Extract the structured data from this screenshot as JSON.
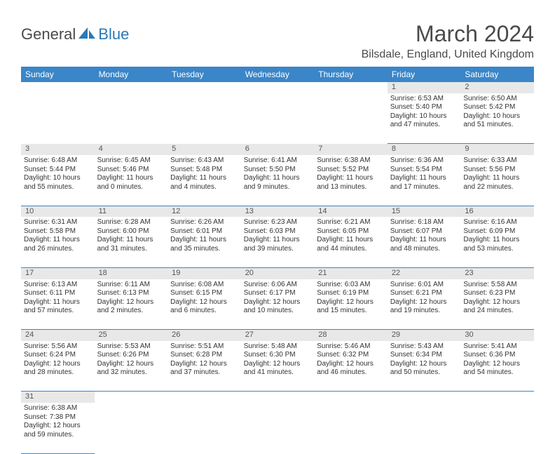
{
  "brand": {
    "part1": "General",
    "part2": "Blue"
  },
  "title": "March 2024",
  "location": "Bilsdale, England, United Kingdom",
  "colors": {
    "header_bg": "#3a86c8",
    "header_text": "#ffffff",
    "daynum_bg": "#e8e8e8",
    "border": "#3a86c8",
    "text": "#333333",
    "brand_gray": "#4a4a4a",
    "brand_blue": "#2a7ab8"
  },
  "weekdays": [
    "Sunday",
    "Monday",
    "Tuesday",
    "Wednesday",
    "Thursday",
    "Friday",
    "Saturday"
  ],
  "weeks": [
    [
      null,
      null,
      null,
      null,
      null,
      {
        "n": "1",
        "sunrise": "Sunrise: 6:53 AM",
        "sunset": "Sunset: 5:40 PM",
        "day1": "Daylight: 10 hours",
        "day2": "and 47 minutes."
      },
      {
        "n": "2",
        "sunrise": "Sunrise: 6:50 AM",
        "sunset": "Sunset: 5:42 PM",
        "day1": "Daylight: 10 hours",
        "day2": "and 51 minutes."
      }
    ],
    [
      {
        "n": "3",
        "sunrise": "Sunrise: 6:48 AM",
        "sunset": "Sunset: 5:44 PM",
        "day1": "Daylight: 10 hours",
        "day2": "and 55 minutes."
      },
      {
        "n": "4",
        "sunrise": "Sunrise: 6:45 AM",
        "sunset": "Sunset: 5:46 PM",
        "day1": "Daylight: 11 hours",
        "day2": "and 0 minutes."
      },
      {
        "n": "5",
        "sunrise": "Sunrise: 6:43 AM",
        "sunset": "Sunset: 5:48 PM",
        "day1": "Daylight: 11 hours",
        "day2": "and 4 minutes."
      },
      {
        "n": "6",
        "sunrise": "Sunrise: 6:41 AM",
        "sunset": "Sunset: 5:50 PM",
        "day1": "Daylight: 11 hours",
        "day2": "and 9 minutes."
      },
      {
        "n": "7",
        "sunrise": "Sunrise: 6:38 AM",
        "sunset": "Sunset: 5:52 PM",
        "day1": "Daylight: 11 hours",
        "day2": "and 13 minutes."
      },
      {
        "n": "8",
        "sunrise": "Sunrise: 6:36 AM",
        "sunset": "Sunset: 5:54 PM",
        "day1": "Daylight: 11 hours",
        "day2": "and 17 minutes."
      },
      {
        "n": "9",
        "sunrise": "Sunrise: 6:33 AM",
        "sunset": "Sunset: 5:56 PM",
        "day1": "Daylight: 11 hours",
        "day2": "and 22 minutes."
      }
    ],
    [
      {
        "n": "10",
        "sunrise": "Sunrise: 6:31 AM",
        "sunset": "Sunset: 5:58 PM",
        "day1": "Daylight: 11 hours",
        "day2": "and 26 minutes."
      },
      {
        "n": "11",
        "sunrise": "Sunrise: 6:28 AM",
        "sunset": "Sunset: 6:00 PM",
        "day1": "Daylight: 11 hours",
        "day2": "and 31 minutes."
      },
      {
        "n": "12",
        "sunrise": "Sunrise: 6:26 AM",
        "sunset": "Sunset: 6:01 PM",
        "day1": "Daylight: 11 hours",
        "day2": "and 35 minutes."
      },
      {
        "n": "13",
        "sunrise": "Sunrise: 6:23 AM",
        "sunset": "Sunset: 6:03 PM",
        "day1": "Daylight: 11 hours",
        "day2": "and 39 minutes."
      },
      {
        "n": "14",
        "sunrise": "Sunrise: 6:21 AM",
        "sunset": "Sunset: 6:05 PM",
        "day1": "Daylight: 11 hours",
        "day2": "and 44 minutes."
      },
      {
        "n": "15",
        "sunrise": "Sunrise: 6:18 AM",
        "sunset": "Sunset: 6:07 PM",
        "day1": "Daylight: 11 hours",
        "day2": "and 48 minutes."
      },
      {
        "n": "16",
        "sunrise": "Sunrise: 6:16 AM",
        "sunset": "Sunset: 6:09 PM",
        "day1": "Daylight: 11 hours",
        "day2": "and 53 minutes."
      }
    ],
    [
      {
        "n": "17",
        "sunrise": "Sunrise: 6:13 AM",
        "sunset": "Sunset: 6:11 PM",
        "day1": "Daylight: 11 hours",
        "day2": "and 57 minutes."
      },
      {
        "n": "18",
        "sunrise": "Sunrise: 6:11 AM",
        "sunset": "Sunset: 6:13 PM",
        "day1": "Daylight: 12 hours",
        "day2": "and 2 minutes."
      },
      {
        "n": "19",
        "sunrise": "Sunrise: 6:08 AM",
        "sunset": "Sunset: 6:15 PM",
        "day1": "Daylight: 12 hours",
        "day2": "and 6 minutes."
      },
      {
        "n": "20",
        "sunrise": "Sunrise: 6:06 AM",
        "sunset": "Sunset: 6:17 PM",
        "day1": "Daylight: 12 hours",
        "day2": "and 10 minutes."
      },
      {
        "n": "21",
        "sunrise": "Sunrise: 6:03 AM",
        "sunset": "Sunset: 6:19 PM",
        "day1": "Daylight: 12 hours",
        "day2": "and 15 minutes."
      },
      {
        "n": "22",
        "sunrise": "Sunrise: 6:01 AM",
        "sunset": "Sunset: 6:21 PM",
        "day1": "Daylight: 12 hours",
        "day2": "and 19 minutes."
      },
      {
        "n": "23",
        "sunrise": "Sunrise: 5:58 AM",
        "sunset": "Sunset: 6:23 PM",
        "day1": "Daylight: 12 hours",
        "day2": "and 24 minutes."
      }
    ],
    [
      {
        "n": "24",
        "sunrise": "Sunrise: 5:56 AM",
        "sunset": "Sunset: 6:24 PM",
        "day1": "Daylight: 12 hours",
        "day2": "and 28 minutes."
      },
      {
        "n": "25",
        "sunrise": "Sunrise: 5:53 AM",
        "sunset": "Sunset: 6:26 PM",
        "day1": "Daylight: 12 hours",
        "day2": "and 32 minutes."
      },
      {
        "n": "26",
        "sunrise": "Sunrise: 5:51 AM",
        "sunset": "Sunset: 6:28 PM",
        "day1": "Daylight: 12 hours",
        "day2": "and 37 minutes."
      },
      {
        "n": "27",
        "sunrise": "Sunrise: 5:48 AM",
        "sunset": "Sunset: 6:30 PM",
        "day1": "Daylight: 12 hours",
        "day2": "and 41 minutes."
      },
      {
        "n": "28",
        "sunrise": "Sunrise: 5:46 AM",
        "sunset": "Sunset: 6:32 PM",
        "day1": "Daylight: 12 hours",
        "day2": "and 46 minutes."
      },
      {
        "n": "29",
        "sunrise": "Sunrise: 5:43 AM",
        "sunset": "Sunset: 6:34 PM",
        "day1": "Daylight: 12 hours",
        "day2": "and 50 minutes."
      },
      {
        "n": "30",
        "sunrise": "Sunrise: 5:41 AM",
        "sunset": "Sunset: 6:36 PM",
        "day1": "Daylight: 12 hours",
        "day2": "and 54 minutes."
      }
    ],
    [
      {
        "n": "31",
        "sunrise": "Sunrise: 6:38 AM",
        "sunset": "Sunset: 7:38 PM",
        "day1": "Daylight: 12 hours",
        "day2": "and 59 minutes."
      },
      null,
      null,
      null,
      null,
      null,
      null
    ]
  ]
}
